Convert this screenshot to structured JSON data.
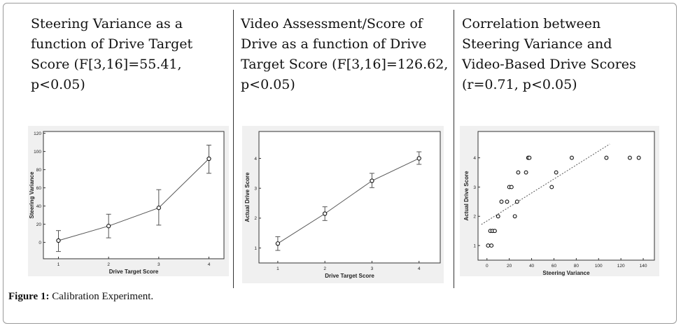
{
  "panels": [
    {
      "title": "Steering Variance as a\nfunction of Drive Target\nScore (F[3,16]=55.41,\np<0.05)"
    },
    {
      "title": "Video Assessment/Score of\nDrive as a function of Drive\nTarget Score (F[3,16]=126.62,\np<0.05)"
    },
    {
      "title": "Correlation between\nSteering Variance and\nVideo-Based Drive Scores\n(r=0.71, p<0.05)"
    }
  ],
  "caption": {
    "label": "Figure 1:",
    "text": " Calibration Experiment."
  },
  "colors": {
    "line": "#555555",
    "marker": "#111111",
    "plot_bg": "#ffffff",
    "outer_bg": "#f0f0f0"
  },
  "chart_data": [
    {
      "type": "line",
      "xlabel": "Drive Target Score",
      "ylabel": "Steering Variance",
      "x": [
        1,
        2,
        3,
        4
      ],
      "y": [
        2,
        18,
        38,
        92
      ],
      "err_low": [
        -10,
        5,
        19,
        76
      ],
      "err_high": [
        13,
        31,
        58,
        107
      ],
      "xlim": [
        0.7,
        4.3
      ],
      "ylim": [
        -18,
        122
      ],
      "xticks": [
        1,
        2,
        3,
        4
      ],
      "yticks": [
        0,
        20,
        40,
        60,
        80,
        100,
        120
      ],
      "grid": false,
      "legend": "none"
    },
    {
      "type": "line",
      "xlabel": "Drive Target Score",
      "ylabel": "Actual Drive Score",
      "x": [
        1,
        2,
        3,
        4
      ],
      "y": [
        1.15,
        2.15,
        3.25,
        4.0
      ],
      "err_low": [
        0.92,
        1.92,
        3.02,
        3.8
      ],
      "err_high": [
        1.38,
        2.38,
        3.5,
        4.22
      ],
      "xlim": [
        0.6,
        4.45
      ],
      "ylim": [
        0.5,
        4.9
      ],
      "xticks": [
        1,
        2,
        3,
        4
      ],
      "yticks": [
        1,
        2,
        3,
        4
      ],
      "grid": false,
      "legend": "none"
    },
    {
      "type": "scatter",
      "xlabel": "Steering Variance",
      "ylabel": "Actual Drive Score",
      "points": [
        [
          1,
          1
        ],
        [
          4,
          1
        ],
        [
          3,
          1.5
        ],
        [
          5,
          1.5
        ],
        [
          7,
          1.5
        ],
        [
          10,
          2
        ],
        [
          13,
          2.5
        ],
        [
          18,
          2.5
        ],
        [
          20,
          3
        ],
        [
          22,
          3
        ],
        [
          25,
          2
        ],
        [
          27,
          2.5
        ],
        [
          28,
          3.5
        ],
        [
          35,
          3.5
        ],
        [
          37,
          4
        ],
        [
          38,
          4
        ],
        [
          58,
          3
        ],
        [
          62,
          3.5
        ],
        [
          76,
          4
        ],
        [
          107,
          4
        ],
        [
          128,
          4
        ],
        [
          136,
          4
        ]
      ],
      "trendline": {
        "x": [
          -5,
          110
        ],
        "y": [
          1.72,
          4.47
        ]
      },
      "xlim": [
        -8,
        150
      ],
      "ylim": [
        0.5,
        4.9
      ],
      "xticks": [
        0,
        20,
        40,
        60,
        80,
        100,
        120,
        140
      ],
      "yticks": [
        1,
        2,
        3,
        4
      ],
      "grid": false,
      "legend": "none"
    }
  ]
}
